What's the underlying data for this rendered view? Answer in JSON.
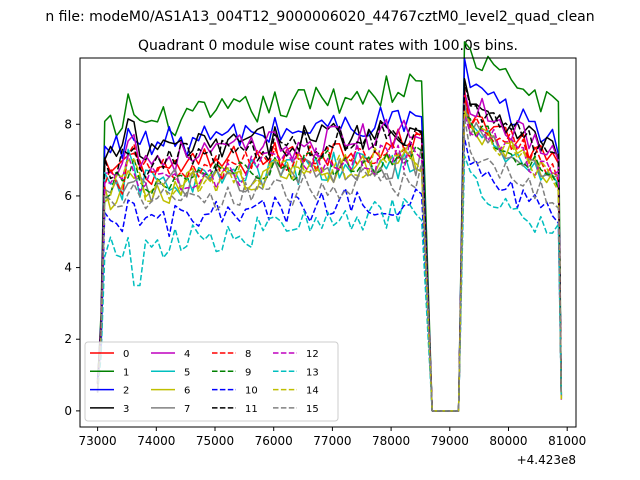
{
  "chart_data": {
    "type": "line",
    "suptitle": "n file: modeM0/AS1A13_004T12_9000006020_44767cztM0_level2_quad_clean",
    "title": "Quadrant 0 module wise count rates with 100.0s bins.",
    "xlabel": "",
    "ylabel": "",
    "x_offset_label": "+4.423e8",
    "xlim": [
      72700,
      81150
    ],
    "ylim": [
      -0.45,
      9.85
    ],
    "xticks": [
      73000,
      74000,
      75000,
      76000,
      77000,
      78000,
      79000,
      80000,
      81000
    ],
    "yticks": [
      0,
      2,
      4,
      6,
      8
    ],
    "grid": false,
    "legend": {
      "location": "lower-left",
      "columns": 4
    },
    "segments": [
      [
        73000,
        78600
      ],
      [
        79250,
        80850
      ]
    ],
    "gap": {
      "x": [
        78700,
        79150
      ],
      "value": 0
    },
    "series": [
      {
        "name": "0",
        "color": "#ff0000",
        "dash": "solid",
        "level": 6.6,
        "trend": 0.9
      },
      {
        "name": "1",
        "color": "#008000",
        "dash": "solid",
        "level": 7.8,
        "trend": 1.3
      },
      {
        "name": "2",
        "color": "#0000ff",
        "dash": "solid",
        "level": 7.3,
        "trend": 0.9
      },
      {
        "name": "3",
        "color": "#000000",
        "dash": "solid",
        "level": 7.1,
        "trend": 0.8
      },
      {
        "name": "4",
        "color": "#bf00bf",
        "dash": "solid",
        "level": 6.9,
        "trend": 0.9
      },
      {
        "name": "5",
        "color": "#00bfbf",
        "dash": "solid",
        "level": 6.2,
        "trend": 0.8
      },
      {
        "name": "6",
        "color": "#bfbf00",
        "dash": "solid",
        "level": 6.0,
        "trend": 1.1
      },
      {
        "name": "7",
        "color": "#808080",
        "dash": "solid",
        "level": 6.1,
        "trend": 0.9
      },
      {
        "name": "8",
        "color": "#ff0000",
        "dash": "dashed",
        "level": 6.4,
        "trend": 1.0
      },
      {
        "name": "9",
        "color": "#008000",
        "dash": "dashed",
        "level": 6.2,
        "trend": 0.9
      },
      {
        "name": "10",
        "color": "#0000ff",
        "dash": "dashed",
        "level": 5.1,
        "trend": 0.9
      },
      {
        "name": "11",
        "color": "#000000",
        "dash": "dashed",
        "level": 6.8,
        "trend": 1.0
      },
      {
        "name": "12",
        "color": "#bf00bf",
        "dash": "dashed",
        "level": 6.3,
        "trend": 0.9
      },
      {
        "name": "13",
        "color": "#00bfbf",
        "dash": "dashed",
        "level": 4.4,
        "trend": 1.2
      },
      {
        "name": "14",
        "color": "#bfbf00",
        "dash": "dashed",
        "level": 6.1,
        "trend": 1.0
      },
      {
        "name": "15",
        "color": "#808080",
        "dash": "dashed",
        "level": 5.6,
        "trend": 0.9
      }
    ]
  }
}
